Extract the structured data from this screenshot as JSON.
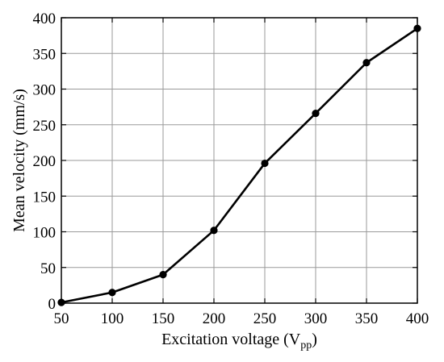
{
  "chart_data": {
    "type": "line",
    "title": "",
    "xlabel": "Excitation voltage (V",
    "xlabel_subscript": "pp",
    "xlabel_suffix": ")",
    "ylabel": "Mean velocity (mm/s)",
    "xlim": [
      50,
      400
    ],
    "ylim": [
      0,
      400
    ],
    "xticks": [
      "50",
      "100",
      "150",
      "200",
      "250",
      "300",
      "350",
      "400"
    ],
    "yticks": [
      "0",
      "50",
      "100",
      "150",
      "200",
      "250",
      "300",
      "350",
      "400"
    ],
    "grid": true,
    "series": [
      {
        "x": [
          50,
          100,
          150,
          200,
          250,
          300,
          350,
          400
        ],
        "y": [
          1,
          15,
          40,
          102,
          196,
          266,
          337,
          385
        ],
        "color": "#000000",
        "marker": "circle"
      }
    ]
  }
}
